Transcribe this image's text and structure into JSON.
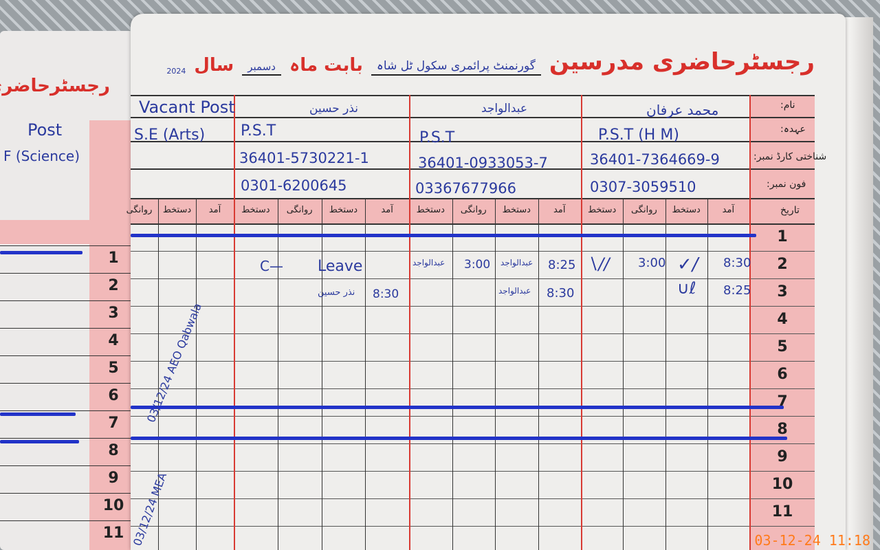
{
  "register": {
    "title": "رجسٹرحاضری مدرسین",
    "school": "گورنمنٹ پرائمری سکول ٹل شاہ",
    "month_label": "بابت ماہ",
    "month": "دسمبر",
    "year_label": "سال",
    "year": "2024"
  },
  "row_labels": {
    "name": "نام:",
    "designation": "عہدہ:",
    "cnic": "شناختی کارڈ نمبر:",
    "phone": "فون نمبر:",
    "date": "تاریخ"
  },
  "sub_columns": [
    "آمد",
    "دستخط",
    "روانگی",
    "دستخط"
  ],
  "teachers": [
    {
      "name": "محمد عرفان",
      "designation": "P.S.T (H M)",
      "cnic": "36401-7364669-9",
      "phone": "0307-3059510"
    },
    {
      "name": "عبدالواجد",
      "designation": "P.S.T",
      "cnic": "36401-0933053-7",
      "phone": "03367677966"
    },
    {
      "name": "نذر حسین",
      "designation": "P.S.T",
      "cnic": "36401-5730221-1",
      "phone": "0301-6200645"
    },
    {
      "name": "Vacant Post",
      "designation": "S.E (Arts)",
      "cnic": "",
      "phone": ""
    }
  ],
  "entries": {
    "row2": {
      "t1_in": "8:30",
      "t1_out": "3:00",
      "t2_in": "8:25",
      "t2_sig": "عبدالواجد",
      "t2_out": "3:00",
      "t2_sig2": "عبدالواجد",
      "t3_mark": "C—",
      "t3_leave": "Leave"
    },
    "row3": {
      "t1_in": "8:25",
      "t2_in": "8:30",
      "t2_sig": "عبدالواجد",
      "t3_in": "8:30",
      "t3_sig": "نذر حسین"
    }
  },
  "remarks": {
    "aeo": "03/12/24 AEO Qabwala",
    "mea": "03/12/24 MEA"
  },
  "days": [
    "1",
    "2",
    "3",
    "4",
    "5",
    "6",
    "7",
    "8",
    "9",
    "10",
    "11"
  ],
  "left_page": {
    "title": "رجسٹرحاضری ما",
    "post": "Post",
    "designation": "F (Science)",
    "days": [
      "1",
      "2",
      "3",
      "4",
      "5",
      "6",
      "7",
      "8",
      "9",
      "10",
      "11"
    ]
  },
  "timestamp": "03-12-24  11:18",
  "colors": {
    "ink": "#2b3a9e",
    "print_red": "#d8302b",
    "pink": "#f2b9b9",
    "stamp": "#ff7a1a"
  }
}
